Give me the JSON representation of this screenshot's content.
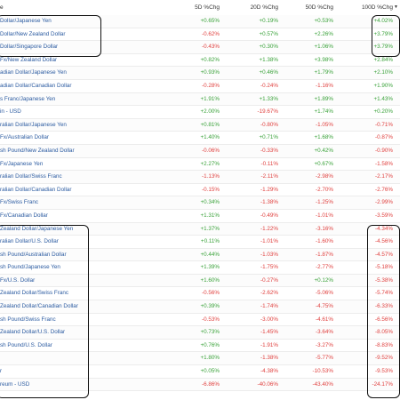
{
  "header": {
    "name_label": "e",
    "c5_label": "5D %Chg",
    "c20_label": "20D %Chg",
    "c50_label": "50D %Chg",
    "c100_label": "100D %Chg",
    "sort_icon": "sort-desc-icon"
  },
  "colors": {
    "positive": "#3aa23a",
    "negative": "#e0413f",
    "link": "#2a5aa0"
  },
  "rows": [
    {
      "name": "Dollar/Japanese Yen",
      "c5": "+0.65%",
      "c20": "+0.19%",
      "c50": "+0.53%",
      "c100": "+4.02%"
    },
    {
      "name": "Dollar/New Zealand Dollar",
      "c5": "-0.62%",
      "c20": "+0.57%",
      "c50": "+2.26%",
      "c100": "+3.79%"
    },
    {
      "name": "Dollar/Singapore Dollar",
      "c5": "-0.43%",
      "c20": "+0.30%",
      "c50": "+1.06%",
      "c100": "+3.79%"
    },
    {
      "name": "Fx/New Zealand Dollar",
      "c5": "+0.82%",
      "c20": "+1.38%",
      "c50": "+3.98%",
      "c100": "+2.84%"
    },
    {
      "name": "adian Dollar/Japanese Yen",
      "c5": "+0.93%",
      "c20": "+0.46%",
      "c50": "+1.79%",
      "c100": "+2.10%"
    },
    {
      "name": "adian Dollar/Canadian Dollar",
      "c5": "-0.28%",
      "c20": "-0.24%",
      "c50": "-1.16%",
      "c100": "+1.90%"
    },
    {
      "name": "s Franc/Japanese Yen",
      "c5": "+1.91%",
      "c20": "+1.33%",
      "c50": "+1.89%",
      "c100": "+1.43%"
    },
    {
      "name": "in - USD",
      "c5": "+2.00%",
      "c20": "-19.67%",
      "c50": "+1.74%",
      "c100": "+0.20%"
    },
    {
      "name": "ralian Dollar/Japanese Yen",
      "c5": "+0.81%",
      "c20": "-0.80%",
      "c50": "-1.05%",
      "c100": "-0.71%"
    },
    {
      "name": "Fx/Australian Dollar",
      "c5": "+1.40%",
      "c20": "+0.71%",
      "c50": "+1.68%",
      "c100": "-0.87%"
    },
    {
      "name": "sh Pound/New Zealand Dollar",
      "c5": "-0.06%",
      "c20": "-0.33%",
      "c50": "+0.42%",
      "c100": "-0.90%"
    },
    {
      "name": "Fx/Japanese Yen",
      "c5": "+2.27%",
      "c20": "-0.11%",
      "c50": "+0.67%",
      "c100": "-1.58%"
    },
    {
      "name": "ralian Dollar/Swiss Franc",
      "c5": "-1.13%",
      "c20": "-2.11%",
      "c50": "-2.98%",
      "c100": "-2.17%"
    },
    {
      "name": "ralian Dollar/Canadian Dollar",
      "c5": "-0.15%",
      "c20": "-1.29%",
      "c50": "-2.70%",
      "c100": "-2.76%"
    },
    {
      "name": "Fx/Swiss Franc",
      "c5": "+0.34%",
      "c20": "-1.38%",
      "c50": "-1.25%",
      "c100": "-2.99%"
    },
    {
      "name": "Fx/Canadian Dollar",
      "c5": "+1.31%",
      "c20": "-0.49%",
      "c50": "-1.01%",
      "c100": "-3.59%"
    },
    {
      "name": "Zealand Dollar/Japanese Yen",
      "c5": "+1.37%",
      "c20": "-1.22%",
      "c50": "-3.16%",
      "c100": "-4.34%"
    },
    {
      "name": "ralian Dollar/U.S. Dollar",
      "c5": "+0.11%",
      "c20": "-1.01%",
      "c50": "-1.60%",
      "c100": "-4.56%"
    },
    {
      "name": "sh Pound/Australian Dollar",
      "c5": "+0.44%",
      "c20": "-1.03%",
      "c50": "-1.87%",
      "c100": "-4.57%"
    },
    {
      "name": "sh Pound/Japanese Yen",
      "c5": "+1.39%",
      "c20": "-1.75%",
      "c50": "-2.77%",
      "c100": "-5.18%"
    },
    {
      "name": "Fx/U.S. Dollar",
      "c5": "+1.60%",
      "c20": "-0.27%",
      "c50": "+0.12%",
      "c100": "-5.38%"
    },
    {
      "name": "Zealand Dollar/Swiss Franc",
      "c5": "-0.56%",
      "c20": "-2.62%",
      "c50": "-5.06%",
      "c100": "-5.74%"
    },
    {
      "name": "Zealand Dollar/Canadian Dollar",
      "c5": "+0.39%",
      "c20": "-1.74%",
      "c50": "-4.75%",
      "c100": "-6.33%"
    },
    {
      "name": "sh Pound/Swiss Franc",
      "c5": "-0.53%",
      "c20": "-3.00%",
      "c50": "-4.61%",
      "c100": "-6.56%"
    },
    {
      "name": "Zealand Dollar/U.S. Dollar",
      "c5": "+0.73%",
      "c20": "-1.45%",
      "c50": "-3.64%",
      "c100": "-8.05%"
    },
    {
      "name": "sh Pound/U.S. Dollar",
      "c5": "+0.76%",
      "c20": "-1.91%",
      "c50": "-3.27%",
      "c100": "-8.83%"
    },
    {
      "name": "",
      "c5": "+1.80%",
      "c20": "-1.38%",
      "c50": "-5.77%",
      "c100": "-9.52%"
    },
    {
      "name": "r",
      "c5": "+0.05%",
      "c20": "-4.38%",
      "c50": "-10.53%",
      "c100": "-9.53%"
    },
    {
      "name": "reum - USD",
      "c5": "-6.86%",
      "c20": "-40.06%",
      "c50": "-43.40%",
      "c100": "-24.17%"
    }
  ]
}
